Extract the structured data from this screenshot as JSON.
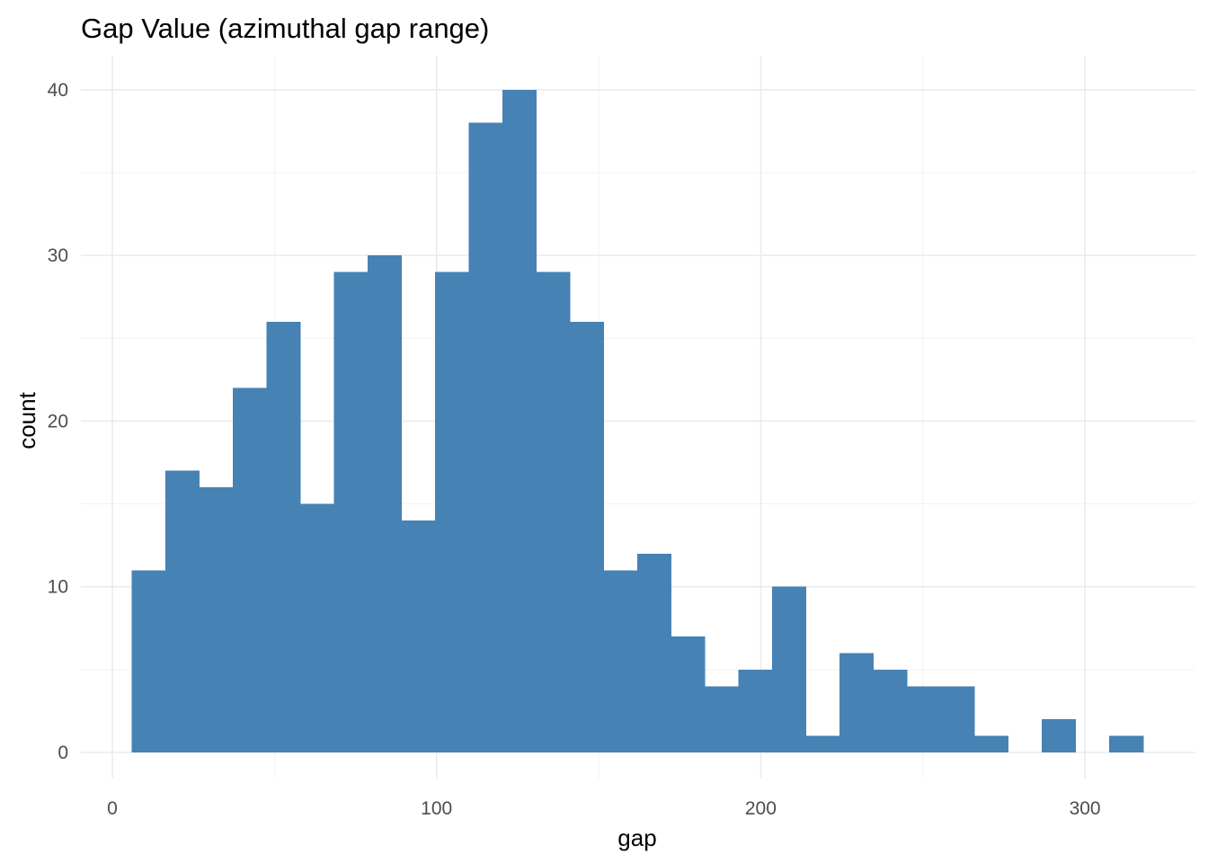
{
  "chart_data": {
    "type": "bar",
    "subtype": "histogram",
    "title": "Gap Value (azimuthal gap range)",
    "xlabel": "gap",
    "ylabel": "count",
    "xlim": [
      0,
      330
    ],
    "ylim": [
      0,
      42
    ],
    "x_ticks": [
      0,
      100,
      200,
      300
    ],
    "x_tick_labels": [
      "0",
      "100",
      "200",
      "300"
    ],
    "y_ticks": [
      0,
      10,
      20,
      30,
      40
    ],
    "y_tick_labels": [
      "0",
      "10",
      "20",
      "30",
      "40"
    ],
    "grid": true,
    "bar_color": "#4682b4",
    "bin_edges": [
      5.9,
      16.3,
      26.7,
      37.1,
      47.5,
      57.9,
      68.3,
      78.7,
      89.1,
      99.5,
      109.9,
      120.3,
      130.7,
      141.1,
      151.5,
      161.9,
      172.3,
      182.7,
      193.1,
      203.5,
      213.9,
      224.3,
      234.7,
      245.1,
      255.5,
      265.9,
      276.3,
      286.7,
      297.1,
      307.5,
      317.9
    ],
    "values": [
      11,
      17,
      16,
      22,
      26,
      15,
      29,
      30,
      14,
      29,
      38,
      40,
      29,
      26,
      11,
      12,
      7,
      4,
      5,
      10,
      1,
      6,
      5,
      4,
      4,
      1,
      0,
      2,
      0,
      1
    ]
  }
}
